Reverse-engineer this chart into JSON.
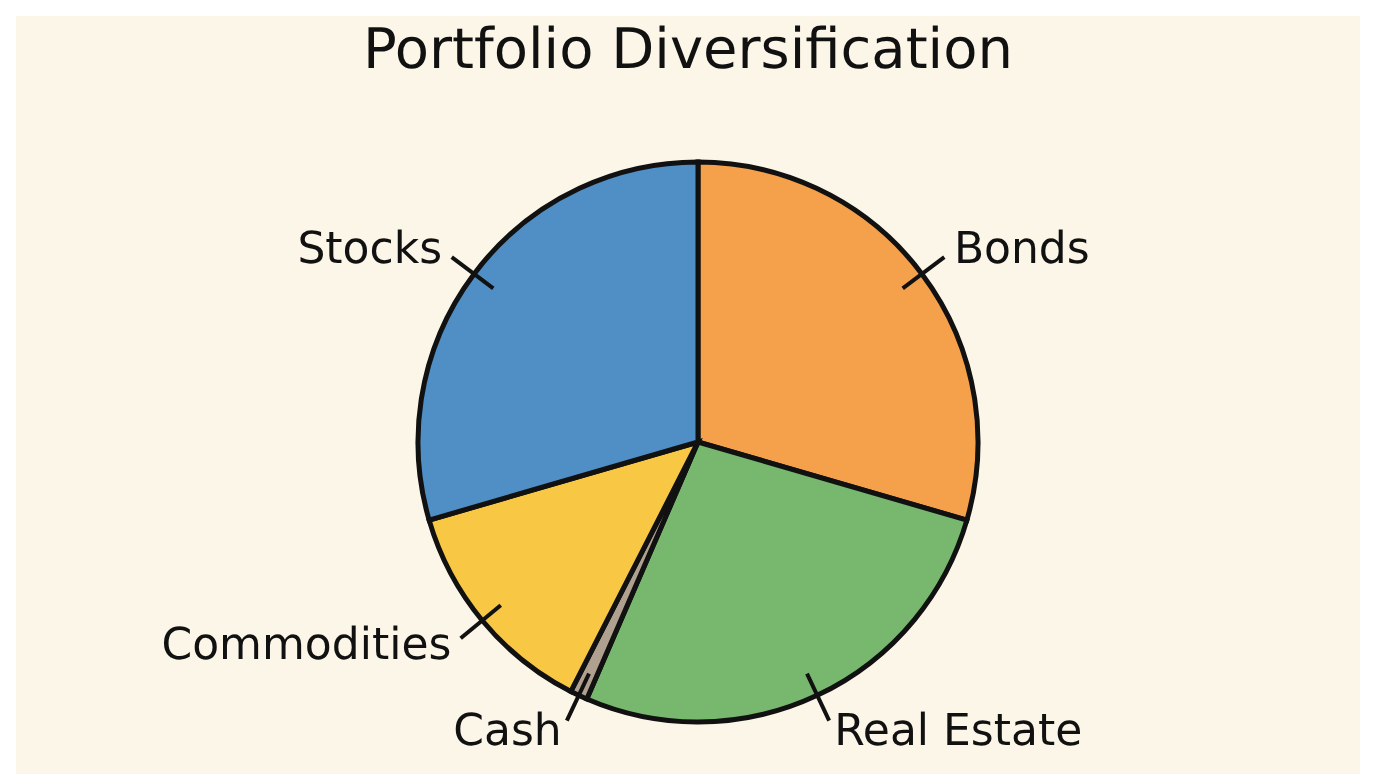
{
  "chart_data": {
    "type": "pie",
    "title": "Portfolio Diversification",
    "categories": [
      "Bonds",
      "Real Estate",
      "Cash",
      "Commodities",
      "Stocks"
    ],
    "values": [
      29.5,
      27,
      1,
      13,
      29.5
    ],
    "colors": [
      "#f5a04a",
      "#78b86e",
      "#b0a090",
      "#f8c844",
      "#4f8fc6"
    ]
  }
}
